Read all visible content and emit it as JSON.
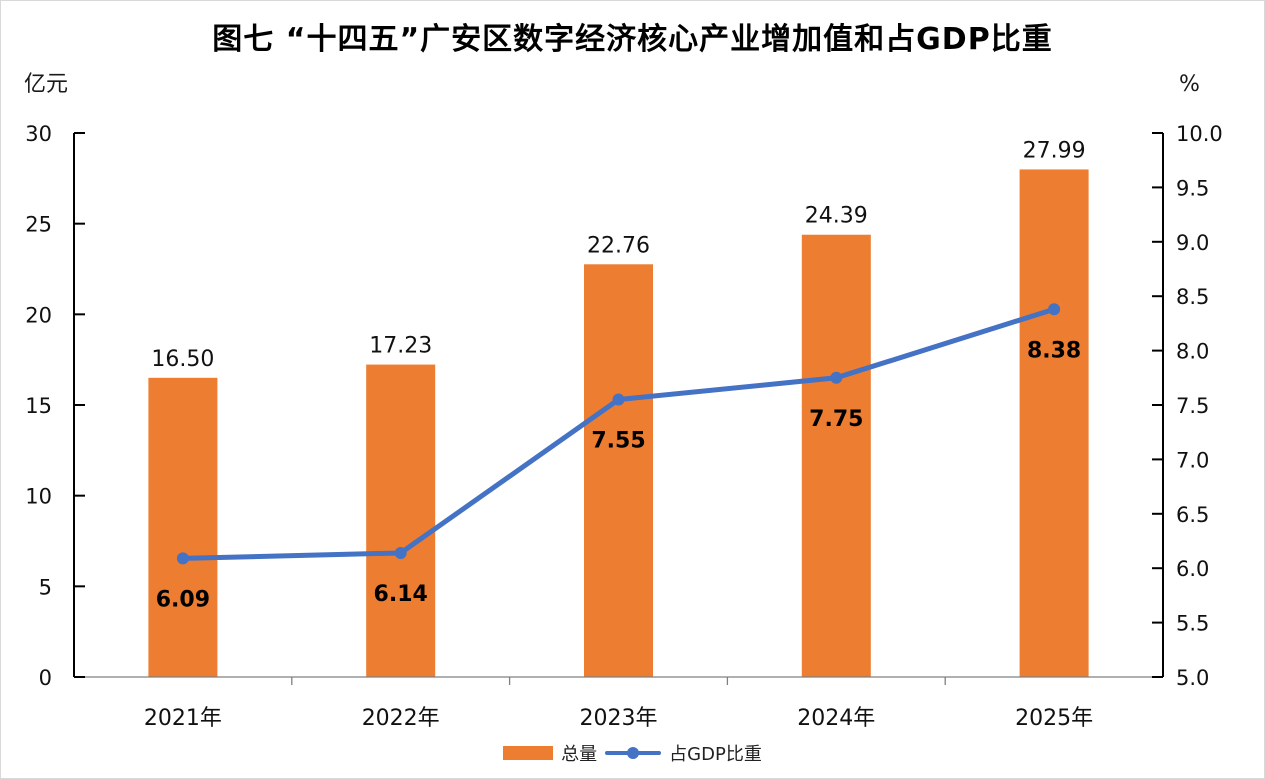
{
  "chart_data": {
    "type": "bar+line",
    "title": "图七 “十四五”广安区数字经济核心产业增加值和占GDP比重",
    "categories": [
      "2021年",
      "2022年",
      "2023年",
      "2024年",
      "2025年"
    ],
    "series": [
      {
        "name": "总量",
        "type": "bar",
        "axis": "left",
        "values": [
          16.5,
          17.23,
          22.76,
          24.39,
          27.99
        ],
        "labels": [
          "16.50",
          "17.23",
          "22.76",
          "24.39",
          "27.99"
        ],
        "color": "#ED7D31"
      },
      {
        "name": "占GDP比重",
        "type": "line",
        "axis": "right",
        "values": [
          6.09,
          6.14,
          7.55,
          7.75,
          8.38
        ],
        "labels": [
          "6.09",
          "6.14",
          "7.55",
          "7.75",
          "8.38"
        ],
        "color": "#4472C4"
      }
    ],
    "y_left": {
      "label": "亿元",
      "range": [
        0,
        30
      ],
      "ticks": [
        "0",
        "5",
        "10",
        "15",
        "20",
        "25",
        "30"
      ]
    },
    "y_right": {
      "label": "%",
      "range": [
        5.0,
        10.0
      ],
      "ticks": [
        "5.0",
        "5.5",
        "6.0",
        "6.5",
        "7.0",
        "7.5",
        "8.0",
        "8.5",
        "9.0",
        "9.5",
        "10.0"
      ]
    },
    "grid": false,
    "legend_position": "bottom"
  }
}
